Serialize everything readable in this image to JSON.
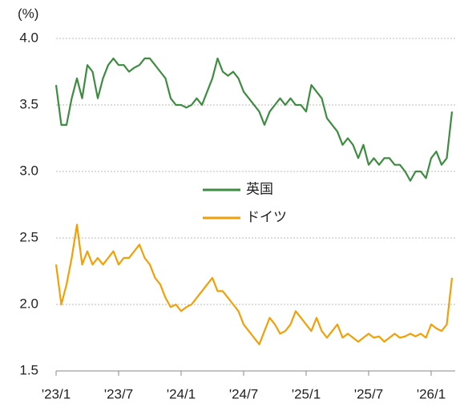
{
  "chart_data": {
    "type": "line",
    "unit_label": "(%)",
    "categories": [
      "'23/1",
      null,
      null,
      null,
      null,
      null,
      null,
      null,
      null,
      null,
      null,
      null,
      "'23/7",
      null,
      null,
      null,
      null,
      null,
      null,
      null,
      null,
      null,
      null,
      null,
      "'24/1",
      null,
      null,
      null,
      null,
      null,
      null,
      null,
      null,
      null,
      null,
      null,
      "'24/7",
      null,
      null,
      null,
      null,
      null,
      null,
      null,
      null,
      null,
      null,
      null,
      "'25/1",
      null,
      null,
      null,
      null,
      null,
      null,
      null,
      null,
      null,
      null,
      null,
      "'25/7",
      null,
      null,
      null,
      null,
      null,
      null,
      null,
      null,
      null,
      null,
      null,
      "'26/1",
      null,
      null,
      null,
      null
    ],
    "series": [
      {
        "name": "英国",
        "color": "#3d8c40",
        "values": [
          3.65,
          3.35,
          3.35,
          3.55,
          3.7,
          3.55,
          3.8,
          3.75,
          3.55,
          3.7,
          3.8,
          3.85,
          3.8,
          3.8,
          3.75,
          3.78,
          3.8,
          3.85,
          3.85,
          3.8,
          3.75,
          3.7,
          3.55,
          3.5,
          3.5,
          3.48,
          3.5,
          3.55,
          3.5,
          3.6,
          3.7,
          3.85,
          3.75,
          3.72,
          3.75,
          3.7,
          3.6,
          3.55,
          3.5,
          3.45,
          3.35,
          3.45,
          3.5,
          3.55,
          3.5,
          3.55,
          3.5,
          3.5,
          3.45,
          3.65,
          3.6,
          3.55,
          3.4,
          3.35,
          3.3,
          3.2,
          3.25,
          3.2,
          3.1,
          3.2,
          3.05,
          3.1,
          3.05,
          3.1,
          3.1,
          3.05,
          3.05,
          3.0,
          2.93,
          3.0,
          3.0,
          2.95,
          3.1,
          3.15,
          3.05,
          3.1,
          3.45
        ]
      },
      {
        "name": "ドイツ",
        "color": "#f2a007",
        "values": [
          2.3,
          2.0,
          2.15,
          2.35,
          2.6,
          2.3,
          2.4,
          2.3,
          2.35,
          2.3,
          2.35,
          2.4,
          2.3,
          2.35,
          2.35,
          2.4,
          2.45,
          2.35,
          2.3,
          2.2,
          2.15,
          2.05,
          1.98,
          2.0,
          1.95,
          1.98,
          2.0,
          2.05,
          2.1,
          2.15,
          2.2,
          2.1,
          2.1,
          2.05,
          2.0,
          1.95,
          1.85,
          1.8,
          1.75,
          1.7,
          1.8,
          1.9,
          1.85,
          1.78,
          1.8,
          1.85,
          1.95,
          1.9,
          1.85,
          1.8,
          1.9,
          1.8,
          1.75,
          1.8,
          1.85,
          1.75,
          1.78,
          1.75,
          1.72,
          1.75,
          1.78,
          1.75,
          1.76,
          1.72,
          1.75,
          1.78,
          1.75,
          1.76,
          1.78,
          1.76,
          1.78,
          1.75,
          1.85,
          1.82,
          1.8,
          1.85,
          2.2
        ]
      }
    ],
    "ylim": [
      1.5,
      4.0
    ],
    "yticks": [
      {
        "value": 1.5,
        "label": "1.5"
      },
      {
        "value": 2,
        "label": "2.0"
      },
      2.5,
      {
        "value": 3,
        "label": "3.0"
      },
      3.5,
      {
        "value": 4,
        "label": "4.0"
      }
    ],
    "grid": true
  }
}
